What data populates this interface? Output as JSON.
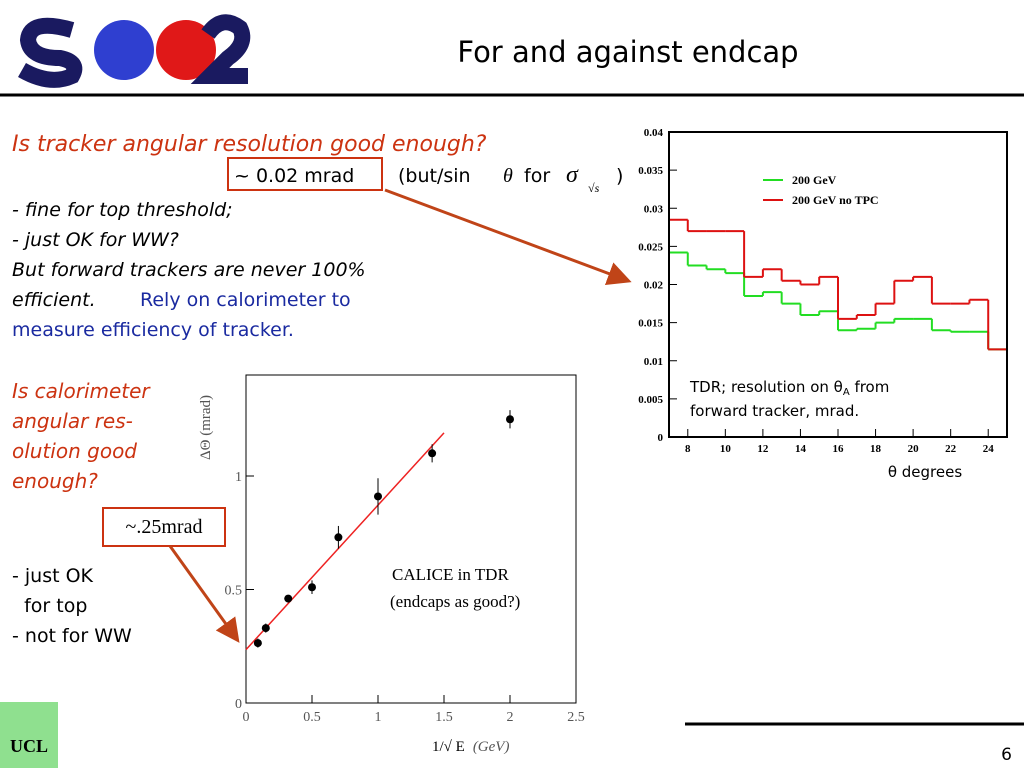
{
  "header": {
    "title": "For and against endcap",
    "page_number": "6",
    "ucl_logo": "UCL"
  },
  "slide": {
    "question1": "Is tracker angular resolution good enough?",
    "tracker_resolution": "~ 0.02 mrad",
    "sin_note": "(but/sin",
    "theta": "θ",
    "for": "for",
    "sigma": "σ",
    "sqrt_s": "√s",
    "close_paren": ")",
    "points1": [
      "- fine for top threshold;",
      "- just OK for WW?",
      "But forward trackers are never 100%",
      "efficient."
    ],
    "blue": [
      "Rely on calorimeter to",
      "measure efficiency of tracker."
    ],
    "question2": [
      "Is calorimeter",
      "angular res-",
      "olution good",
      "enough?"
    ],
    "calo_resolution": "~.25mrad",
    "points2": [
      "- just OK",
      "  for top",
      "- not for WW"
    ]
  },
  "chart_data": [
    {
      "type": "histogram",
      "bins": [
        7,
        8,
        9,
        10,
        11,
        12,
        13,
        14,
        15,
        16,
        17,
        18,
        19,
        20,
        21,
        22,
        23,
        24,
        25
      ],
      "series": [
        {
          "name": "200 GeV",
          "color": "#22dd22",
          "values": [
            0.0242,
            0.0225,
            0.022,
            0.0215,
            0.0185,
            0.019,
            0.0175,
            0.016,
            0.0165,
            0.014,
            0.0142,
            0.015,
            0.0155,
            0.0155,
            0.014,
            0.0138,
            0.0138,
            0.0115
          ]
        },
        {
          "name": "200 GeV no TPC",
          "color": "#dd1111",
          "values": [
            0.0285,
            0.027,
            0.027,
            0.027,
            0.021,
            0.022,
            0.0205,
            0.02,
            0.021,
            0.0155,
            0.016,
            0.0175,
            0.0205,
            0.021,
            0.0175,
            0.0175,
            0.018,
            0.0115
          ]
        }
      ],
      "xlim": [
        7,
        25
      ],
      "ylim": [
        0,
        0.04
      ],
      "xticks": [
        8,
        10,
        12,
        14,
        16,
        18,
        20,
        22,
        24
      ],
      "yticks": [
        0,
        0.005,
        0.01,
        0.015,
        0.02,
        0.025,
        0.03,
        0.035,
        0.04
      ],
      "xlabel": "θ degrees",
      "annotation": [
        "TDR; resolution on θ",
        "A",
        " from",
        "forward tracker, mrad."
      ]
    },
    {
      "type": "scatter",
      "x": [
        0.09,
        0.15,
        0.32,
        0.5,
        0.7,
        1.0,
        1.41,
        2.0
      ],
      "values": [
        0.264,
        0.33,
        0.46,
        0.51,
        0.73,
        0.91,
        1.1,
        1.25
      ],
      "errors": [
        0.02,
        0.02,
        0.015,
        0.03,
        0.05,
        0.08,
        0.04,
        0.04
      ],
      "color": "#000000",
      "fit": {
        "x": [
          0,
          1.5
        ],
        "values": [
          0.235,
          1.19
        ],
        "color": "#ee2222"
      },
      "xlim": [
        0,
        2.5
      ],
      "ylim": [
        0,
        1.445
      ],
      "xticks": [
        0,
        0.5,
        1,
        1.5,
        2,
        2.5
      ],
      "yticks": [
        0,
        0.5,
        1
      ],
      "xlabel": [
        "1/√ E",
        "(GeV)"
      ],
      "ylabel": "ΔΘ (mrad)",
      "annotation": [
        "CALICE in TDR",
        "(endcaps as good?)"
      ]
    }
  ]
}
